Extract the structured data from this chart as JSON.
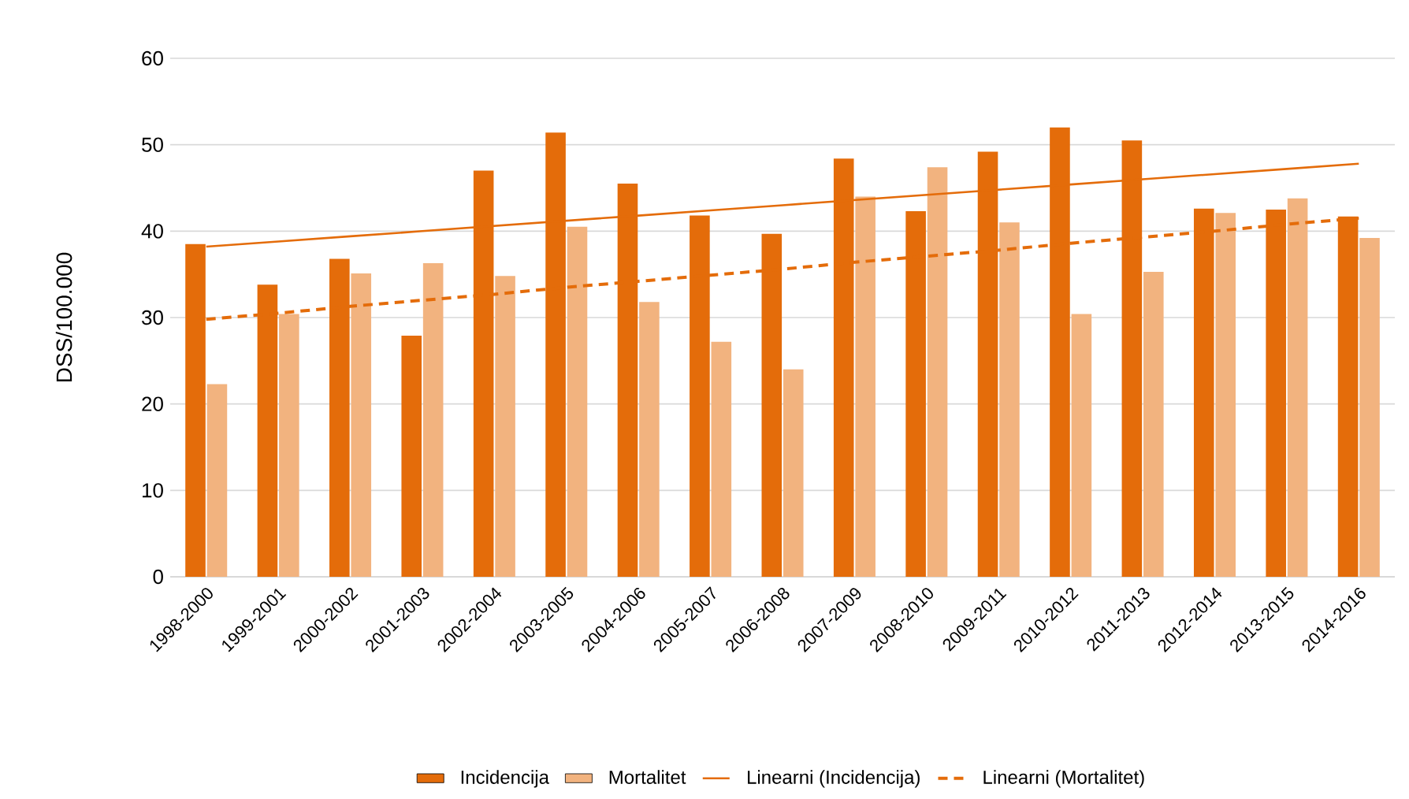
{
  "chart_data": {
    "type": "bar",
    "ylabel": "DSS/100.000",
    "categories": [
      "1998-2000",
      "1999-2001",
      "2000-2002",
      "2001-2003",
      "2002-2004",
      "2003-2005",
      "2004-2006",
      "2005-2007",
      "2006-2008",
      "2007-2009",
      "2008-2010",
      "2009-2011",
      "2010-2012",
      "2011-2013",
      "2012-2014",
      "2013-2015",
      "2014-2016"
    ],
    "ylim": [
      0,
      60
    ],
    "yticks": [
      0,
      10,
      20,
      30,
      40,
      50,
      60
    ],
    "grid": "y",
    "legend": "bottom",
    "series": [
      {
        "name": "Incidencija",
        "color": "#e46c0a",
        "values": [
          38.5,
          33.8,
          36.8,
          27.9,
          47.0,
          51.4,
          45.5,
          41.8,
          39.7,
          48.4,
          42.3,
          49.2,
          52.0,
          50.5,
          42.6,
          42.5,
          41.7
        ]
      },
      {
        "name": "Mortalitet",
        "color": "#f2b37f",
        "values": [
          22.3,
          30.4,
          35.1,
          36.3,
          34.8,
          40.5,
          31.8,
          27.2,
          24.0,
          44.0,
          47.4,
          41.0,
          30.4,
          35.3,
          42.1,
          43.8,
          39.2
        ]
      },
      {
        "name": "Linearni (Incidencija)",
        "type": "line",
        "line_style": "solid",
        "color": "#e46c0a",
        "values": [
          38.2,
          38.8,
          39.4,
          40.0,
          40.6,
          41.2,
          41.8,
          42.4,
          43.0,
          43.6,
          44.2,
          44.8,
          45.4,
          46.0,
          46.6,
          47.2,
          47.8
        ]
      },
      {
        "name": "Linearni (Mortalitet)",
        "type": "line",
        "line_style": "dashed",
        "color": "#e46c0a",
        "values": [
          29.8,
          30.5,
          31.3,
          32.0,
          32.7,
          33.5,
          34.2,
          34.9,
          35.6,
          36.4,
          37.1,
          37.8,
          38.6,
          39.3,
          40.0,
          40.8,
          41.5
        ]
      }
    ]
  }
}
